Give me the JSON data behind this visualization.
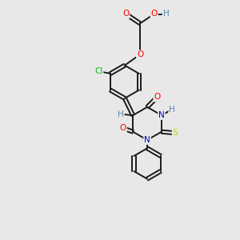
{
  "bg_color": "#e8e8e8",
  "bond_color": "#1a1a1a",
  "atom_colors": {
    "O": "#ff0000",
    "N": "#0000cc",
    "S": "#cccc00",
    "Cl": "#00bb00",
    "H": "#5588aa",
    "C": "#1a1a1a"
  },
  "figsize": [
    3.0,
    3.0
  ],
  "dpi": 100,
  "xlim": [
    0,
    10
  ],
  "ylim": [
    0,
    10
  ]
}
